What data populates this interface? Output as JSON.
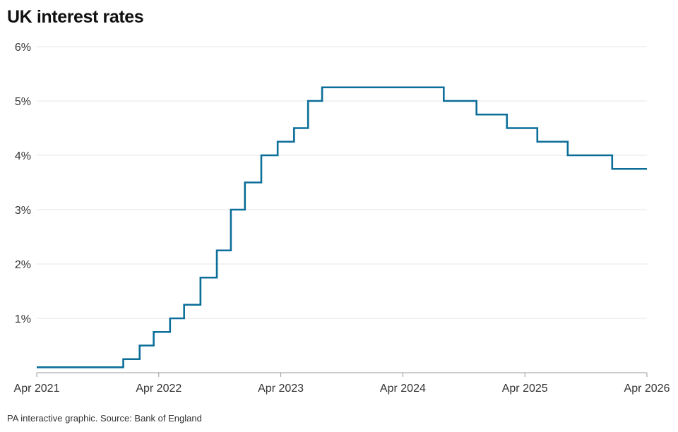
{
  "title": "UK interest rates",
  "source": "PA interactive graphic. Source: Bank of England",
  "colors": {
    "line": "#0b6e99",
    "grid": "#e6e6e6",
    "axis": "#999999"
  },
  "chart_data": {
    "type": "line",
    "step": true,
    "title": "UK interest rates",
    "xlabel": "",
    "ylabel": "",
    "x_tick_labels": [
      "Apr 2021",
      "Apr 2022",
      "Apr 2023",
      "Apr 2024",
      "Apr 2025",
      "Apr 2026"
    ],
    "y_tick_labels": [
      "1%",
      "2%",
      "3%",
      "4%",
      "5%",
      "6%"
    ],
    "y_ticks": [
      1,
      2,
      3,
      4,
      5,
      6
    ],
    "xlim": [
      "2021-04-01",
      "2026-04-01"
    ],
    "ylim": [
      0,
      6
    ],
    "grid": true,
    "series": [
      {
        "values": [
          {
            "date": "2021-04-01",
            "rate": 0.1
          },
          {
            "date": "2021-12-16",
            "rate": 0.25
          },
          {
            "date": "2022-02-03",
            "rate": 0.5
          },
          {
            "date": "2022-03-17",
            "rate": 0.75
          },
          {
            "date": "2022-05-05",
            "rate": 1.0
          },
          {
            "date": "2022-06-16",
            "rate": 1.25
          },
          {
            "date": "2022-08-04",
            "rate": 1.75
          },
          {
            "date": "2022-09-22",
            "rate": 2.25
          },
          {
            "date": "2022-11-03",
            "rate": 3.0
          },
          {
            "date": "2022-12-15",
            "rate": 3.5
          },
          {
            "date": "2023-02-02",
            "rate": 4.0
          },
          {
            "date": "2023-03-23",
            "rate": 4.25
          },
          {
            "date": "2023-05-11",
            "rate": 4.5
          },
          {
            "date": "2023-06-22",
            "rate": 5.0
          },
          {
            "date": "2023-08-03",
            "rate": 5.25
          },
          {
            "date": "2024-08-01",
            "rate": 5.0
          },
          {
            "date": "2024-11-07",
            "rate": 4.75
          },
          {
            "date": "2025-02-06",
            "rate": 4.5
          },
          {
            "date": "2025-05-08",
            "rate": 4.25
          },
          {
            "date": "2025-08-07",
            "rate": 4.0
          },
          {
            "date": "2025-12-18",
            "rate": 3.75
          },
          {
            "date": "2026-04-01",
            "rate": 3.75
          }
        ]
      }
    ]
  }
}
